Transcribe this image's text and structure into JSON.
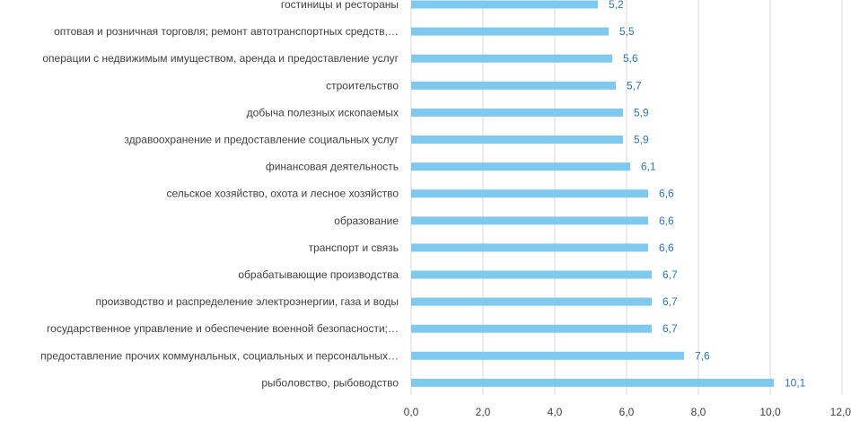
{
  "chart_data": {
    "type": "bar",
    "orientation": "horizontal",
    "categories": [
      "гостиницы и рестораны",
      "оптовая и розничная торговля; ремонт автотранспортных средств,…",
      "операции с недвижимым имуществом, аренда и предоставление услуг",
      "строительство",
      "добыча полезных ископаемых",
      "здравоохранение и предоставление социальных услуг",
      "финансовая деятельность",
      "сельское хозяйство, охота и лесное хозяйство",
      "образование",
      "транспорт и связь",
      "обрабатывающие производства",
      "производство и распределение электроэнергии, газа и воды",
      "государственное управление и обеспечение военной безопасности;…",
      "предоставление прочих коммунальных, социальных и персональных…",
      "рыболовство, рыбоводство"
    ],
    "values": [
      5.2,
      5.5,
      5.6,
      5.7,
      5.9,
      5.9,
      6.1,
      6.6,
      6.6,
      6.6,
      6.7,
      6.7,
      6.7,
      7.6,
      10.1
    ],
    "value_labels": [
      "5,2",
      "5,5",
      "5,6",
      "5,7",
      "5,9",
      "5,9",
      "6,1",
      "6,6",
      "6,6",
      "6,6",
      "6,7",
      "6,7",
      "6,7",
      "7,6",
      "10,1"
    ],
    "xlim": [
      0,
      12
    ],
    "ticks": [
      0,
      2,
      4,
      6,
      8,
      10,
      12
    ],
    "tick_labels": [
      "0,0",
      "2,0",
      "4,0",
      "6,0",
      "8,0",
      "10,0",
      "12,0"
    ],
    "grid": true,
    "legend": "none",
    "colors": {
      "bar": "#7fc8ee",
      "value_label": "#2e75b6",
      "grid": "#d9d9d9",
      "text": "#404040"
    }
  }
}
